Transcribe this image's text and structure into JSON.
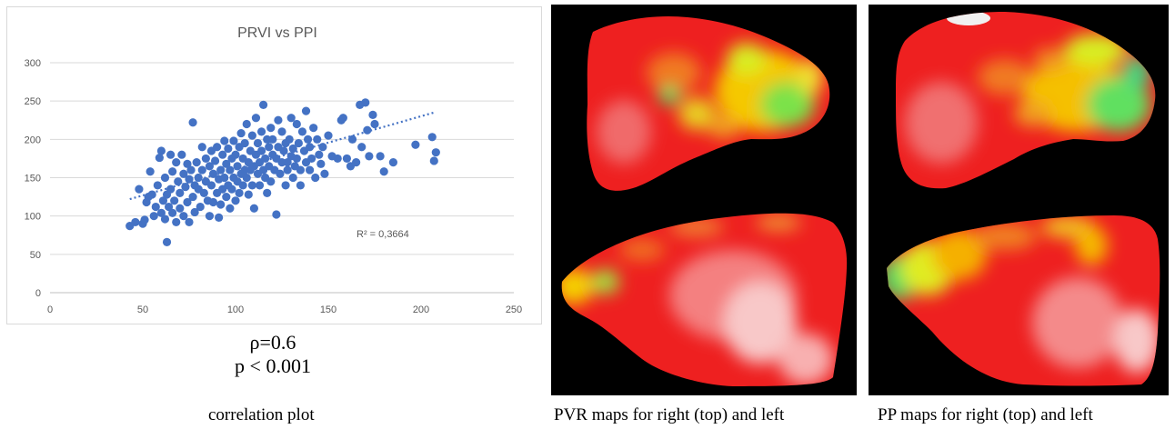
{
  "stats": {
    "rho": "ρ=0.6",
    "p": "p < 0.001"
  },
  "captions": {
    "plot": "correlation plot",
    "pvr": "PVR maps for right (top) and left",
    "pp": "PP maps for right (top) and left"
  },
  "chart_data": {
    "type": "scatter",
    "title": "PRVI vs PPI",
    "xlabel": "",
    "ylabel": "",
    "xlim": [
      0,
      250
    ],
    "ylim": [
      0,
      300
    ],
    "xticks": [
      "0",
      "50",
      "100",
      "150",
      "200",
      "250"
    ],
    "yticks": [
      "0",
      "50",
      "100",
      "150",
      "200",
      "250",
      "300"
    ],
    "grid": "horizontal",
    "marker_color": "#4472c4",
    "trendline": {
      "type": "linear",
      "x": [
        43,
        207
      ],
      "y": [
        122,
        235
      ],
      "style": "dotted"
    },
    "r2_label": "R² = 0,3664",
    "series": [
      {
        "values": [
          [
            43,
            87
          ],
          [
            46,
            92
          ],
          [
            48,
            135
          ],
          [
            50,
            90
          ],
          [
            51,
            95
          ],
          [
            52,
            118
          ],
          [
            53,
            125
          ],
          [
            54,
            158
          ],
          [
            55,
            128
          ],
          [
            56,
            100
          ],
          [
            57,
            112
          ],
          [
            58,
            140
          ],
          [
            59,
            176
          ],
          [
            60,
            185
          ],
          [
            60,
            104
          ],
          [
            61,
            120
          ],
          [
            62,
            150
          ],
          [
            62,
            96
          ],
          [
            63,
            66
          ],
          [
            63,
            128
          ],
          [
            64,
            112
          ],
          [
            65,
            180
          ],
          [
            65,
            135
          ],
          [
            66,
            104
          ],
          [
            66,
            158
          ],
          [
            67,
            120
          ],
          [
            68,
            170
          ],
          [
            68,
            92
          ],
          [
            69,
            145
          ],
          [
            70,
            130
          ],
          [
            70,
            110
          ],
          [
            71,
            180
          ],
          [
            72,
            155
          ],
          [
            72,
            100
          ],
          [
            73,
            138
          ],
          [
            74,
            168
          ],
          [
            74,
            118
          ],
          [
            75,
            148
          ],
          [
            75,
            92
          ],
          [
            76,
            160
          ],
          [
            77,
            222
          ],
          [
            77,
            125
          ],
          [
            78,
            140
          ],
          [
            78,
            105
          ],
          [
            79,
            170
          ],
          [
            80,
            135
          ],
          [
            80,
            150
          ],
          [
            81,
            112
          ],
          [
            82,
            190
          ],
          [
            82,
            160
          ],
          [
            83,
            130
          ],
          [
            84,
            175
          ],
          [
            84,
            145
          ],
          [
            85,
            120
          ],
          [
            86,
            165
          ],
          [
            86,
            100
          ],
          [
            87,
            140
          ],
          [
            87,
            185
          ],
          [
            88,
            155
          ],
          [
            88,
            118
          ],
          [
            89,
            172
          ],
          [
            90,
            130
          ],
          [
            90,
            190
          ],
          [
            91,
            98
          ],
          [
            91,
            148
          ],
          [
            92,
            160
          ],
          [
            92,
            115
          ],
          [
            93,
            180
          ],
          [
            93,
            135
          ],
          [
            94,
            198
          ],
          [
            94,
            150
          ],
          [
            95,
            125
          ],
          [
            95,
            168
          ],
          [
            96,
            140
          ],
          [
            96,
            188
          ],
          [
            97,
            110
          ],
          [
            97,
            160
          ],
          [
            98,
            175
          ],
          [
            98,
            135
          ],
          [
            99,
            150
          ],
          [
            99,
            198
          ],
          [
            100,
            120
          ],
          [
            100,
            180
          ],
          [
            101,
            145
          ],
          [
            101,
            165
          ],
          [
            102,
            190
          ],
          [
            102,
            130
          ],
          [
            103,
            155
          ],
          [
            103,
            208
          ],
          [
            104,
            175
          ],
          [
            104,
            140
          ],
          [
            105,
            160
          ],
          [
            105,
            195
          ],
          [
            106,
            150
          ],
          [
            106,
            220
          ],
          [
            107,
            170
          ],
          [
            107,
            128
          ],
          [
            108,
            185
          ],
          [
            108,
            160
          ],
          [
            109,
            140
          ],
          [
            109,
            205
          ],
          [
            110,
            165
          ],
          [
            110,
            110
          ],
          [
            111,
            180
          ],
          [
            111,
            228
          ],
          [
            112,
            155
          ],
          [
            112,
            195
          ],
          [
            113,
            170
          ],
          [
            113,
            140
          ],
          [
            114,
            210
          ],
          [
            114,
            185
          ],
          [
            115,
            160
          ],
          [
            115,
            245
          ],
          [
            116,
            175
          ],
          [
            116,
            150
          ],
          [
            117,
            200
          ],
          [
            117,
            130
          ],
          [
            118,
            190
          ],
          [
            118,
            165
          ],
          [
            119,
            215
          ],
          [
            119,
            145
          ],
          [
            120,
            180
          ],
          [
            120,
            200
          ],
          [
            121,
            160
          ],
          [
            122,
            175
          ],
          [
            122,
            102
          ],
          [
            123,
            225
          ],
          [
            123,
            190
          ],
          [
            124,
            155
          ],
          [
            125,
            170
          ],
          [
            125,
            210
          ],
          [
            126,
            185
          ],
          [
            127,
            140
          ],
          [
            127,
            195
          ],
          [
            128,
            170
          ],
          [
            128,
            160
          ],
          [
            129,
            200
          ],
          [
            130,
            178
          ],
          [
            130,
            228
          ],
          [
            131,
            150
          ],
          [
            131,
            188
          ],
          [
            132,
            165
          ],
          [
            133,
            220
          ],
          [
            133,
            175
          ],
          [
            134,
            195
          ],
          [
            135,
            140
          ],
          [
            135,
            160
          ],
          [
            136,
            210
          ],
          [
            137,
            185
          ],
          [
            138,
            170
          ],
          [
            138,
            237
          ],
          [
            139,
            200
          ],
          [
            140,
            160
          ],
          [
            140,
            190
          ],
          [
            141,
            175
          ],
          [
            142,
            215
          ],
          [
            143,
            150
          ],
          [
            144,
            200
          ],
          [
            145,
            180
          ],
          [
            146,
            168
          ],
          [
            147,
            190
          ],
          [
            148,
            155
          ],
          [
            150,
            205
          ],
          [
            152,
            178
          ],
          [
            155,
            175
          ],
          [
            157,
            225
          ],
          [
            158,
            228
          ],
          [
            160,
            175
          ],
          [
            162,
            165
          ],
          [
            163,
            200
          ],
          [
            165,
            170
          ],
          [
            167,
            245
          ],
          [
            168,
            190
          ],
          [
            170,
            248
          ],
          [
            171,
            212
          ],
          [
            172,
            178
          ],
          [
            174,
            232
          ],
          [
            175,
            220
          ],
          [
            178,
            178
          ],
          [
            180,
            158
          ],
          [
            185,
            170
          ],
          [
            197,
            193
          ],
          [
            206,
            203
          ],
          [
            207,
            172
          ],
          [
            208,
            183
          ]
        ]
      }
    ]
  }
}
